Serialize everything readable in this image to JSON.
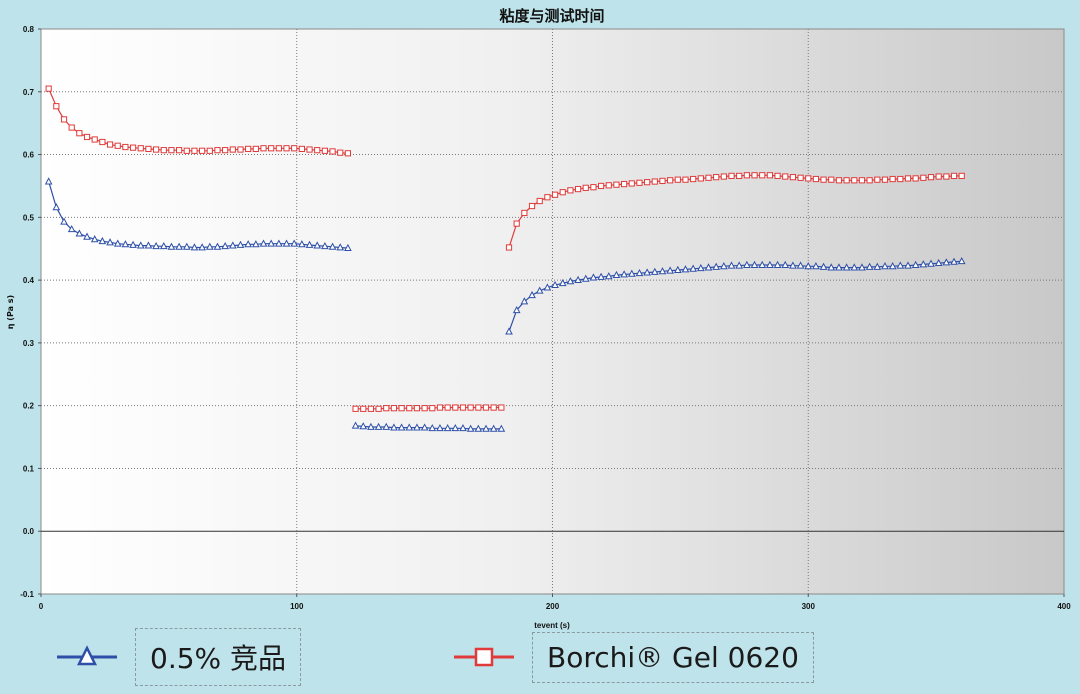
{
  "chart_data": {
    "type": "line",
    "title": "粘度与测试时间",
    "xlabel": "tevent (s)",
    "ylabel": "η (Pa s)",
    "xlim": [
      0,
      400
    ],
    "ylim": [
      -0.1,
      0.8
    ],
    "x_ticks": [
      "0",
      "100",
      "200",
      "300",
      "400"
    ],
    "y_ticks": [
      "-0.1",
      "0.0",
      "0.1",
      "0.2",
      "0.3",
      "0.4",
      "0.5",
      "0.6",
      "0.7",
      "0.8"
    ],
    "grid": true,
    "legend_position": "bottom",
    "series": [
      {
        "name": "0.5% 竞品",
        "color": "#2d4fa8",
        "marker": "triangle",
        "segments": [
          {
            "x": [
              3,
              6,
              9,
              12,
              15,
              18,
              21,
              24,
              27,
              30,
              33,
              36,
              39,
              42,
              45,
              48,
              51,
              54,
              57,
              60,
              63,
              66,
              69,
              72,
              75,
              78,
              81,
              84,
              87,
              90,
              93,
              96,
              99,
              102,
              105,
              108,
              111,
              114,
              117,
              120
            ],
            "y": [
              0.557,
              0.516,
              0.493,
              0.481,
              0.474,
              0.469,
              0.465,
              0.462,
              0.46,
              0.458,
              0.457,
              0.456,
              0.455,
              0.455,
              0.454,
              0.454,
              0.453,
              0.453,
              0.453,
              0.452,
              0.452,
              0.453,
              0.453,
              0.454,
              0.455,
              0.456,
              0.457,
              0.457,
              0.458,
              0.458,
              0.458,
              0.458,
              0.458,
              0.457,
              0.456,
              0.455,
              0.454,
              0.453,
              0.452,
              0.451
            ]
          },
          {
            "x": [
              123,
              126,
              129,
              132,
              135,
              138,
              141,
              144,
              147,
              150,
              153,
              156,
              159,
              162,
              165,
              168,
              171,
              174,
              177,
              180
            ],
            "y": [
              0.168,
              0.167,
              0.166,
              0.166,
              0.166,
              0.165,
              0.165,
              0.165,
              0.165,
              0.165,
              0.164,
              0.164,
              0.164,
              0.164,
              0.164,
              0.163,
              0.163,
              0.163,
              0.163,
              0.163
            ]
          },
          {
            "x": [
              183,
              186,
              189,
              192,
              195,
              198,
              201,
              204,
              207,
              210,
              213,
              216,
              219,
              222,
              225,
              228,
              231,
              234,
              237,
              240,
              243,
              246,
              249,
              252,
              255,
              258,
              261,
              264,
              267,
              270,
              273,
              276,
              279,
              282,
              285,
              288,
              291,
              294,
              297,
              300,
              303,
              306,
              309,
              312,
              315,
              318,
              321,
              324,
              327,
              330,
              333,
              336,
              339,
              342,
              345,
              348,
              351,
              354,
              357,
              360
            ],
            "y": [
              0.318,
              0.352,
              0.366,
              0.376,
              0.383,
              0.388,
              0.392,
              0.395,
              0.398,
              0.4,
              0.402,
              0.404,
              0.405,
              0.406,
              0.408,
              0.409,
              0.41,
              0.411,
              0.412,
              0.413,
              0.414,
              0.415,
              0.416,
              0.417,
              0.418,
              0.419,
              0.42,
              0.421,
              0.422,
              0.423,
              0.423,
              0.424,
              0.424,
              0.424,
              0.424,
              0.424,
              0.424,
              0.423,
              0.423,
              0.422,
              0.422,
              0.421,
              0.42,
              0.42,
              0.42,
              0.42,
              0.42,
              0.421,
              0.421,
              0.422,
              0.422,
              0.423,
              0.423,
              0.424,
              0.425,
              0.426,
              0.427,
              0.428,
              0.429,
              0.43
            ]
          }
        ]
      },
      {
        "name": "Borchi® Gel 0620",
        "color": "#e03a3a",
        "marker": "square",
        "segments": [
          {
            "x": [
              3,
              6,
              9,
              12,
              15,
              18,
              21,
              24,
              27,
              30,
              33,
              36,
              39,
              42,
              45,
              48,
              51,
              54,
              57,
              60,
              63,
              66,
              69,
              72,
              75,
              78,
              81,
              84,
              87,
              90,
              93,
              96,
              99,
              102,
              105,
              108,
              111,
              114,
              117,
              120
            ],
            "y": [
              0.705,
              0.677,
              0.656,
              0.643,
              0.634,
              0.628,
              0.624,
              0.62,
              0.616,
              0.614,
              0.612,
              0.611,
              0.61,
              0.609,
              0.608,
              0.607,
              0.607,
              0.607,
              0.606,
              0.606,
              0.606,
              0.606,
              0.607,
              0.607,
              0.608,
              0.608,
              0.609,
              0.609,
              0.61,
              0.61,
              0.61,
              0.61,
              0.61,
              0.609,
              0.608,
              0.607,
              0.606,
              0.605,
              0.603,
              0.602
            ]
          },
          {
            "x": [
              123,
              126,
              129,
              132,
              135,
              138,
              141,
              144,
              147,
              150,
              153,
              156,
              159,
              162,
              165,
              168,
              171,
              174,
              177,
              180
            ],
            "y": [
              0.195,
              0.195,
              0.195,
              0.195,
              0.196,
              0.196,
              0.196,
              0.196,
              0.196,
              0.196,
              0.196,
              0.197,
              0.197,
              0.197,
              0.197,
              0.197,
              0.197,
              0.197,
              0.197,
              0.197
            ]
          },
          {
            "x": [
              183,
              186,
              189,
              192,
              195,
              198,
              201,
              204,
              207,
              210,
              213,
              216,
              219,
              222,
              225,
              228,
              231,
              234,
              237,
              240,
              243,
              246,
              249,
              252,
              255,
              258,
              261,
              264,
              267,
              270,
              273,
              276,
              279,
              282,
              285,
              288,
              291,
              294,
              297,
              300,
              303,
              306,
              309,
              312,
              315,
              318,
              321,
              324,
              327,
              330,
              333,
              336,
              339,
              342,
              345,
              348,
              351,
              354,
              357,
              360
            ],
            "y": [
              0.452,
              0.49,
              0.507,
              0.518,
              0.526,
              0.532,
              0.536,
              0.54,
              0.543,
              0.545,
              0.547,
              0.548,
              0.55,
              0.551,
              0.552,
              0.553,
              0.554,
              0.555,
              0.556,
              0.557,
              0.558,
              0.559,
              0.56,
              0.56,
              0.561,
              0.562,
              0.563,
              0.564,
              0.565,
              0.566,
              0.566,
              0.567,
              0.567,
              0.567,
              0.567,
              0.566,
              0.565,
              0.564,
              0.563,
              0.562,
              0.561,
              0.56,
              0.56,
              0.559,
              0.559,
              0.559,
              0.559,
              0.559,
              0.56,
              0.56,
              0.561,
              0.561,
              0.562,
              0.562,
              0.563,
              0.564,
              0.565,
              0.565,
              0.566,
              0.566
            ]
          }
        ]
      }
    ]
  },
  "legend": {
    "items": [
      {
        "label": "0.5% 竞品",
        "color": "#2d4fa8",
        "marker": "triangle"
      },
      {
        "label": "Borchi® Gel 0620",
        "color": "#e03a3a",
        "marker": "square"
      }
    ]
  },
  "colors": {
    "background": "#bfe3ea",
    "plot_left": "#ffffff",
    "plot_right": "#c8c8c8"
  }
}
